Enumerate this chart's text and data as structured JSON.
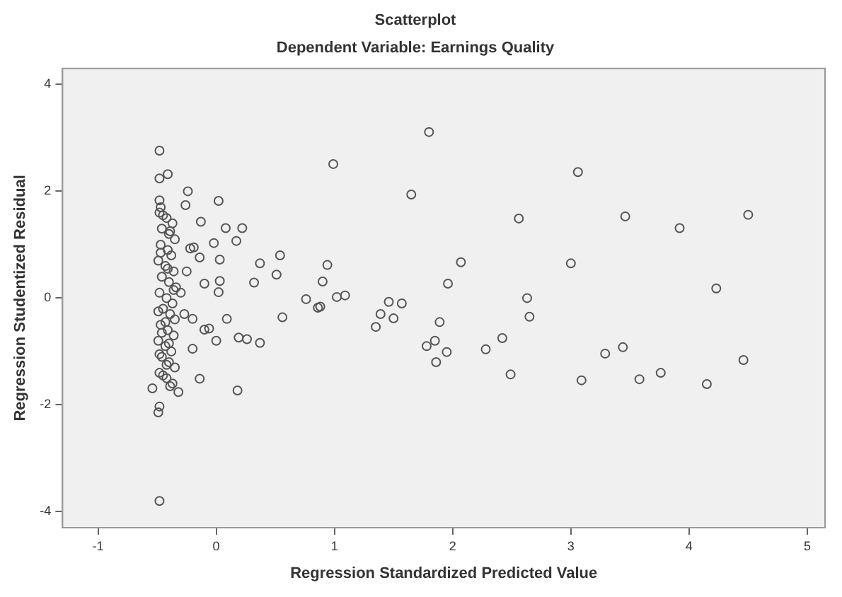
{
  "chart_data": {
    "type": "scatter",
    "title": "Scatterplot",
    "subtitle": "Dependent Variable: Earnings Quality",
    "xlabel": "Regression Standardized Predicted Value",
    "ylabel": "Regression Studentized Residual",
    "xlim": [
      -1.3,
      5.15
    ],
    "ylim": [
      -4.3,
      4.3
    ],
    "xticks": [
      -1,
      0,
      1,
      2,
      3,
      4,
      5
    ],
    "yticks": [
      -4,
      -2,
      0,
      2,
      4
    ],
    "grid": false,
    "legend": false,
    "marker": "circle",
    "series": [
      {
        "color": "#555555",
        "x": [
          0.99,
          1.8,
          3.06,
          1.65,
          2.56,
          3.46,
          3.92,
          4.5,
          0.94,
          2.07,
          3.0,
          0.9,
          1.96,
          4.23,
          1.02,
          1.09,
          0.88,
          1.46,
          1.57,
          1.39,
          1.5,
          1.35,
          2.63,
          2.65,
          1.89,
          1.85,
          1.78,
          1.95,
          1.86,
          2.28,
          2.42,
          2.49,
          3.29,
          3.44,
          3.09,
          3.58,
          3.76,
          4.15,
          4.46,
          -0.48,
          -0.48,
          -0.41,
          -0.24,
          -0.26,
          0.02,
          -0.48,
          -0.13,
          0.08,
          0.22,
          0.17,
          -0.02,
          -0.19,
          -0.14,
          0.03,
          0.37,
          0.54,
          0.51,
          0.32,
          0.03,
          0.02,
          -0.1,
          0.76,
          0.86,
          0.56,
          0.09,
          -0.1,
          -0.06,
          -0.2,
          0.0,
          0.19,
          0.26,
          0.37,
          -0.2,
          -0.14,
          0.18,
          -0.32,
          -0.54,
          -0.48,
          -0.49,
          -0.48,
          -0.22,
          -0.25,
          -0.3,
          -0.27,
          -0.48,
          -0.42,
          -0.37,
          -0.46,
          -0.4,
          -0.35,
          -0.47,
          -0.41,
          -0.38,
          -0.49,
          -0.43,
          -0.36,
          -0.46,
          -0.4,
          -0.34,
          -0.48,
          -0.42,
          -0.37,
          -0.45,
          -0.39,
          -0.35,
          -0.47,
          -0.41,
          -0.36,
          -0.49,
          -0.43,
          -0.38,
          -0.46,
          -0.4,
          -0.35,
          -0.48,
          -0.42,
          -0.37,
          -0.45,
          -0.39,
          -0.47,
          -0.41,
          -0.36,
          -0.49,
          -0.43,
          -0.46,
          -0.4,
          -0.48,
          -0.42,
          -0.45,
          -0.39,
          -0.47
        ],
        "values": [
          2.51,
          3.11,
          2.36,
          1.94,
          1.49,
          1.53,
          1.31,
          1.56,
          0.62,
          0.67,
          0.65,
          0.31,
          0.27,
          0.18,
          0.02,
          0.05,
          -0.16,
          -0.07,
          -0.1,
          -0.3,
          -0.38,
          -0.54,
          0.0,
          -0.35,
          -0.45,
          -0.8,
          -0.9,
          -1.01,
          -1.2,
          -0.96,
          -0.75,
          -1.43,
          -1.04,
          -0.92,
          -1.54,
          -1.52,
          -1.4,
          -1.61,
          -1.16,
          2.76,
          2.24,
          2.32,
          2.0,
          1.74,
          1.82,
          1.83,
          1.43,
          1.31,
          1.31,
          1.07,
          1.03,
          0.95,
          0.76,
          0.72,
          0.65,
          0.8,
          0.44,
          0.29,
          0.32,
          0.11,
          0.27,
          -0.02,
          -0.18,
          -0.36,
          -0.39,
          -0.59,
          -0.57,
          -0.39,
          -0.8,
          -0.74,
          -0.77,
          -0.84,
          -0.95,
          -1.51,
          -1.73,
          -1.76,
          -1.69,
          -2.03,
          -2.14,
          -3.8,
          0.93,
          0.5,
          0.1,
          -0.3,
          1.6,
          1.5,
          1.4,
          1.3,
          1.2,
          1.1,
          1.0,
          0.9,
          0.8,
          0.7,
          0.6,
          0.5,
          0.4,
          0.3,
          0.2,
          0.1,
          0.0,
          -0.1,
          -0.2,
          -0.3,
          -0.4,
          -0.5,
          -0.6,
          -0.7,
          -0.8,
          -0.9,
          -1.0,
          -1.1,
          -1.2,
          -1.3,
          -1.4,
          -1.5,
          -1.6,
          1.55,
          1.25,
          0.85,
          0.55,
          0.15,
          -0.25,
          -0.45,
          -0.65,
          -0.85,
          -1.05,
          -1.25,
          -1.45,
          -1.65,
          1.7
        ]
      }
    ]
  }
}
